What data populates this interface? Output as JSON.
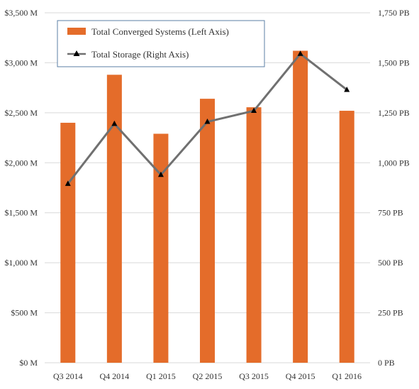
{
  "chart_data": {
    "type": "bar",
    "categories": [
      "Q3 2014",
      "Q4 2014",
      "Q1 2015",
      "Q2 2015",
      "Q3 2015",
      "Q4 2015",
      "Q1 2016"
    ],
    "series": [
      {
        "name": "Total Converged Systems (Left Axis)",
        "type": "bar",
        "axis": "left",
        "color": "#E46C2A",
        "values": [
          2400,
          2880,
          2290,
          2640,
          2555,
          3120,
          2520
        ]
      },
      {
        "name": "Total Storage (Right Axis)",
        "type": "line",
        "axis": "right",
        "color": "#707070",
        "marker": "triangle",
        "values": [
          895,
          1195,
          940,
          1205,
          1260,
          1545,
          1365
        ]
      }
    ],
    "left_axis": {
      "min": 0,
      "max": 3500,
      "ticks": [
        0,
        500,
        1000,
        1500,
        2000,
        2500,
        3000,
        3500
      ],
      "tick_labels": [
        "$0 M",
        "$500 M",
        "$1,000 M",
        "$1,500 M",
        "$2,000 M",
        "$2,500 M",
        "$3,000 M",
        "$3,500 M"
      ]
    },
    "right_axis": {
      "min": 0,
      "max": 1750,
      "ticks": [
        0,
        250,
        500,
        750,
        1000,
        1250,
        1500,
        1750
      ],
      "tick_labels": [
        "0 PB",
        "250 PB",
        "500 PB",
        "750 PB",
        "1,000 PB",
        "1,250 PB",
        "1,500 PB",
        "1,750 PB"
      ]
    },
    "grid": true,
    "legend_position": "top-left"
  }
}
